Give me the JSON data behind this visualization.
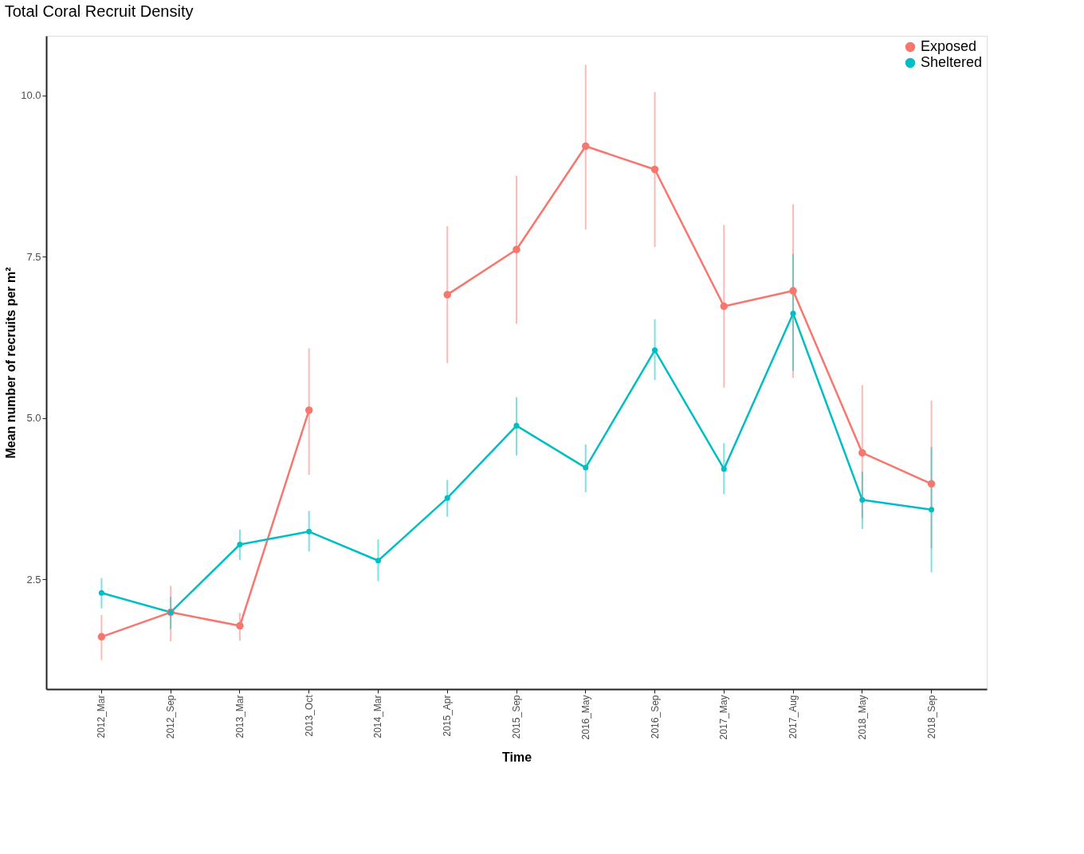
{
  "chart_data": {
    "type": "line",
    "title": "Total Coral Recruit Density",
    "xlabel": "Time",
    "ylabel": "Mean number of recruits per m²",
    "categories": [
      "2012_Mar",
      "2012_Sep",
      "2013_Mar",
      "2013_Oct",
      "2014_Mar",
      "2015_Apr",
      "2015_Sep",
      "2016_May",
      "2016_Sep",
      "2017_May",
      "2017_Aug",
      "2018_May",
      "2018_Sep"
    ],
    "series": [
      {
        "name": "Exposed",
        "color": "#f8766d",
        "values": [
          1.61,
          1.99,
          1.78,
          5.12,
          null,
          6.91,
          7.61,
          9.21,
          8.85,
          6.73,
          6.97,
          4.46,
          3.98
        ],
        "errors": [
          [
            1.25,
            1.95
          ],
          [
            1.54,
            2.4
          ],
          [
            1.55,
            1.98
          ],
          [
            4.12,
            6.08
          ],
          null,
          [
            5.85,
            7.97
          ],
          [
            6.46,
            8.75
          ],
          [
            7.92,
            10.47
          ],
          [
            7.65,
            10.05
          ],
          [
            5.47,
            7.99
          ],
          [
            5.62,
            8.31
          ],
          [
            3.45,
            5.51
          ],
          [
            2.98,
            5.27
          ]
        ]
      },
      {
        "name": "Sheltered",
        "color": "#00bfc4",
        "values": [
          2.29,
          1.99,
          3.04,
          3.24,
          2.79,
          3.76,
          4.88,
          4.23,
          6.05,
          4.21,
          6.62,
          3.73,
          3.58
        ],
        "errors": [
          [
            2.05,
            2.52
          ],
          [
            1.73,
            2.23
          ],
          [
            2.8,
            3.27
          ],
          [
            2.93,
            3.56
          ],
          [
            2.47,
            3.12
          ],
          [
            3.47,
            4.04
          ],
          [
            4.42,
            5.32
          ],
          [
            3.85,
            4.59
          ],
          [
            5.59,
            6.53
          ],
          [
            3.82,
            4.61
          ],
          [
            5.73,
            7.54
          ],
          [
            3.28,
            4.17
          ],
          [
            2.61,
            4.55
          ]
        ]
      }
    ],
    "ylim": [
      0.8,
      10.92
    ],
    "yticks": [
      2.5,
      {
        "value": 5,
        "label": "5.0"
      },
      7.5,
      {
        "value": 10,
        "label": "10.0"
      }
    ],
    "grid": false,
    "legend": "top right",
    "marker": "circle",
    "line_style": "solid"
  }
}
